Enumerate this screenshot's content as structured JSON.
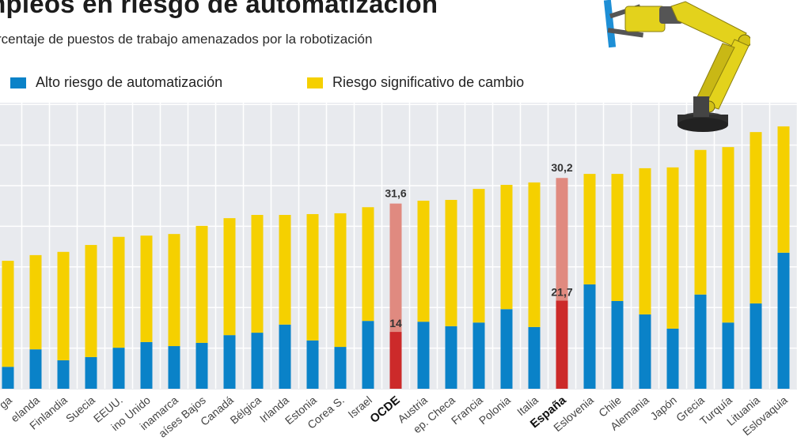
{
  "header": {
    "title": "Empleos en riesgo de automatización",
    "title_visible": "mpleos en riesgo de automatización",
    "subtitle": "Porcentaje de puestos de trabajo amenazados  por la robotización",
    "subtitle_visible": "rcentaje de puestos de trabajo amenazados  por la robotización"
  },
  "legend": [
    {
      "label": "Alto riesgo de automatización",
      "color": "#0a82c8"
    },
    {
      "label": "Riesgo significativo de cambio",
      "color": "#f5d000"
    }
  ],
  "illustration": {
    "icon": "robot-arm-icon"
  },
  "colors": {
    "high_risk": "#0a82c8",
    "significant_change": "#f5d000",
    "highlight_high": "#cc2a2a",
    "highlight_change": "#e08a80",
    "background": "#e8eaee",
    "gridline": "#ffffff"
  },
  "chart_data": {
    "type": "bar",
    "stacked": true,
    "title": "Empleos en riesgo de automatización",
    "subtitle": "Porcentaje de puestos de trabajo amenazados  por la robotización",
    "xlabel": "",
    "ylabel": "",
    "ylim": [
      0,
      70
    ],
    "grid": true,
    "gridline_step": 10,
    "legend_position": "top-left",
    "categories": [
      "Noruega",
      "N. Zelanda",
      "Finlandia",
      "Suecia",
      "EEUU.",
      "Reino Unido",
      "Dinamarca",
      "Países Bajos",
      "Canadá",
      "Bélgica",
      "Irlanda",
      "Estonia",
      "Corea S.",
      "Israel",
      "OCDE",
      "Austria",
      "Rep. Checa",
      "Francia",
      "Polonia",
      "Italia",
      "España",
      "Eslovenia",
      "Chile",
      "Alemania",
      "Japón",
      "Grecia",
      "Turquía",
      "Lituania",
      "Eslovaquia"
    ],
    "category_labels_visible": [
      "ga",
      "elanda",
      "Finlandia",
      "Suecia",
      "EEUU.",
      "ino Unido",
      "inamarca",
      "aíses Bajos",
      "Canadá",
      "Bélgica",
      "Irlanda",
      "Estonia",
      "Corea S.",
      "Israel",
      "OCDE",
      "Austria",
      "ep. Checa",
      "Francia",
      "Polonia",
      "Italia",
      "España",
      "Eslovenia",
      "Chile",
      "Alemania",
      "Japón",
      "Grecia",
      "Turquía",
      "Lituania",
      "Eslovaquia"
    ],
    "highlighted": [
      "OCDE",
      "España"
    ],
    "series": [
      {
        "name": "Alto riesgo de automatización",
        "values": [
          5.4,
          9.7,
          7.0,
          7.8,
          10.1,
          11.5,
          10.5,
          11.3,
          13.2,
          13.8,
          15.8,
          11.9,
          10.3,
          16.7,
          14,
          16.5,
          15.4,
          16.3,
          19.6,
          15.2,
          21.7,
          25.7,
          21.6,
          18.3,
          14.8,
          23.2,
          16.3,
          21.0,
          33.5
        ]
      },
      {
        "name": "Riesgo significativo de cambio",
        "values": [
          26.1,
          23.2,
          26.7,
          27.6,
          27.3,
          26.2,
          27.6,
          28.8,
          28.8,
          29.0,
          27.0,
          31.1,
          32.9,
          28.0,
          31.6,
          29.8,
          31.1,
          32.9,
          30.6,
          35.6,
          30.2,
          27.2,
          31.3,
          36.0,
          39.7,
          35.6,
          43.2,
          42.2,
          31.1
        ]
      }
    ],
    "data_labels": [
      {
        "category": "OCDE",
        "series": "Alto riesgo de automatización",
        "text": "14"
      },
      {
        "category": "OCDE",
        "series": "Riesgo significativo de cambio",
        "text": "31,6"
      },
      {
        "category": "España",
        "series": "Alto riesgo de automatización",
        "text": "21,7"
      },
      {
        "category": "España",
        "series": "Riesgo significativo de cambio",
        "text": "30,2"
      }
    ]
  }
}
